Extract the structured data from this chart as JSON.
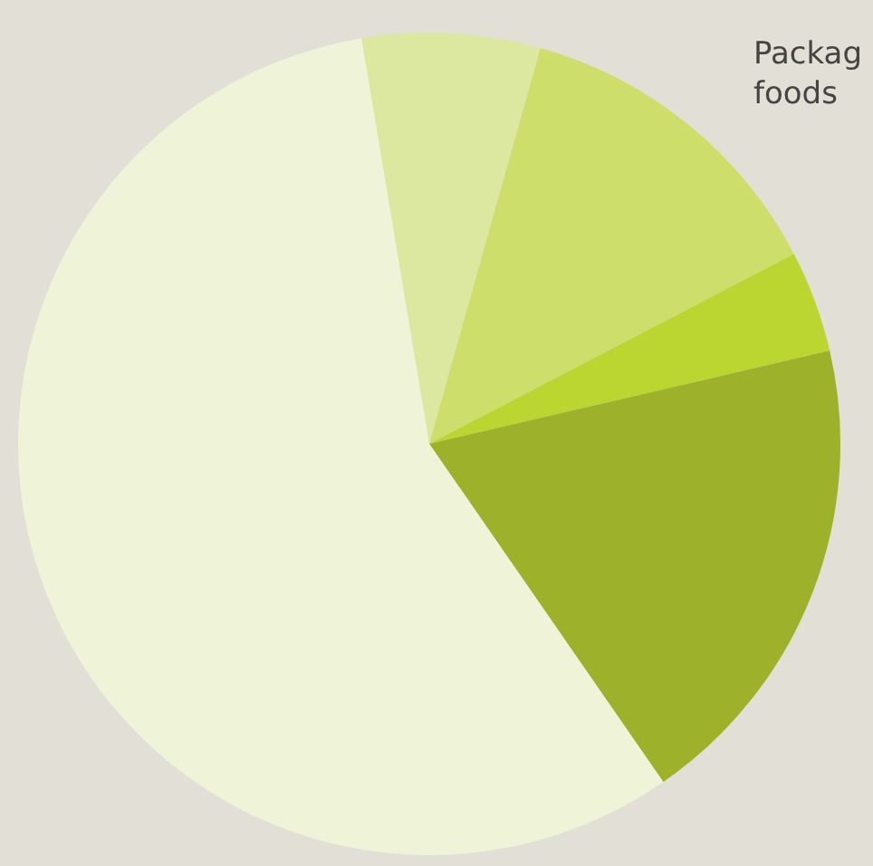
{
  "chart_data": {
    "type": "pie",
    "categories": [
      null,
      "Packag\nfoods",
      null,
      null,
      null
    ],
    "values": [
      7,
      13,
      4,
      19,
      57
    ],
    "colors": [
      "#dce8a0",
      "#cddf6a",
      "#bcd631",
      "#9db22a",
      "#eff4d8"
    ],
    "legend": false
  }
}
